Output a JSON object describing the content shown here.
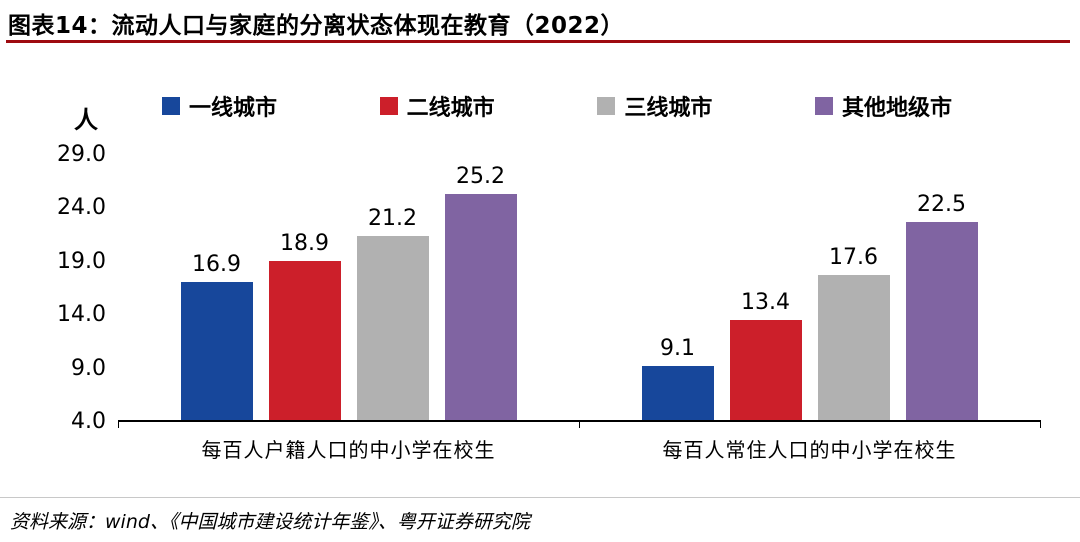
{
  "header": {
    "title": "图表14：流动人口与家庭的分离状态体现在教育（2022）"
  },
  "footer": {
    "source": "资料来源：wind、《中国城市建设统计年鉴》、粤开证券研究院"
  },
  "colors": {
    "title_underline": "#9E0B10",
    "axis_line": "#000000",
    "footer_rule": "#C8C8C8"
  },
  "chart_data": {
    "type": "bar",
    "title": "图表14：流动人口与家庭的分离状态体现在教育（2022）",
    "unit_label": "人",
    "ylim": [
      4.0,
      29.0
    ],
    "yticks": [
      29.0,
      24.0,
      19.0,
      14.0,
      9.0,
      4.0
    ],
    "grid": false,
    "legend_position": "top",
    "categories": [
      "每百人户籍人口的中小学在校生",
      "每百人常住人口的中小学在校生"
    ],
    "series": [
      {
        "name": "一线城市",
        "color": "#17479B",
        "values": [
          16.9,
          9.1
        ]
      },
      {
        "name": "二线城市",
        "color": "#CC1F2A",
        "values": [
          18.9,
          13.4
        ]
      },
      {
        "name": "三线城市",
        "color": "#B1B1B1",
        "values": [
          21.2,
          17.6
        ]
      },
      {
        "name": "其他地级市",
        "color": "#8064A2",
        "values": [
          25.2,
          22.5
        ]
      }
    ]
  }
}
